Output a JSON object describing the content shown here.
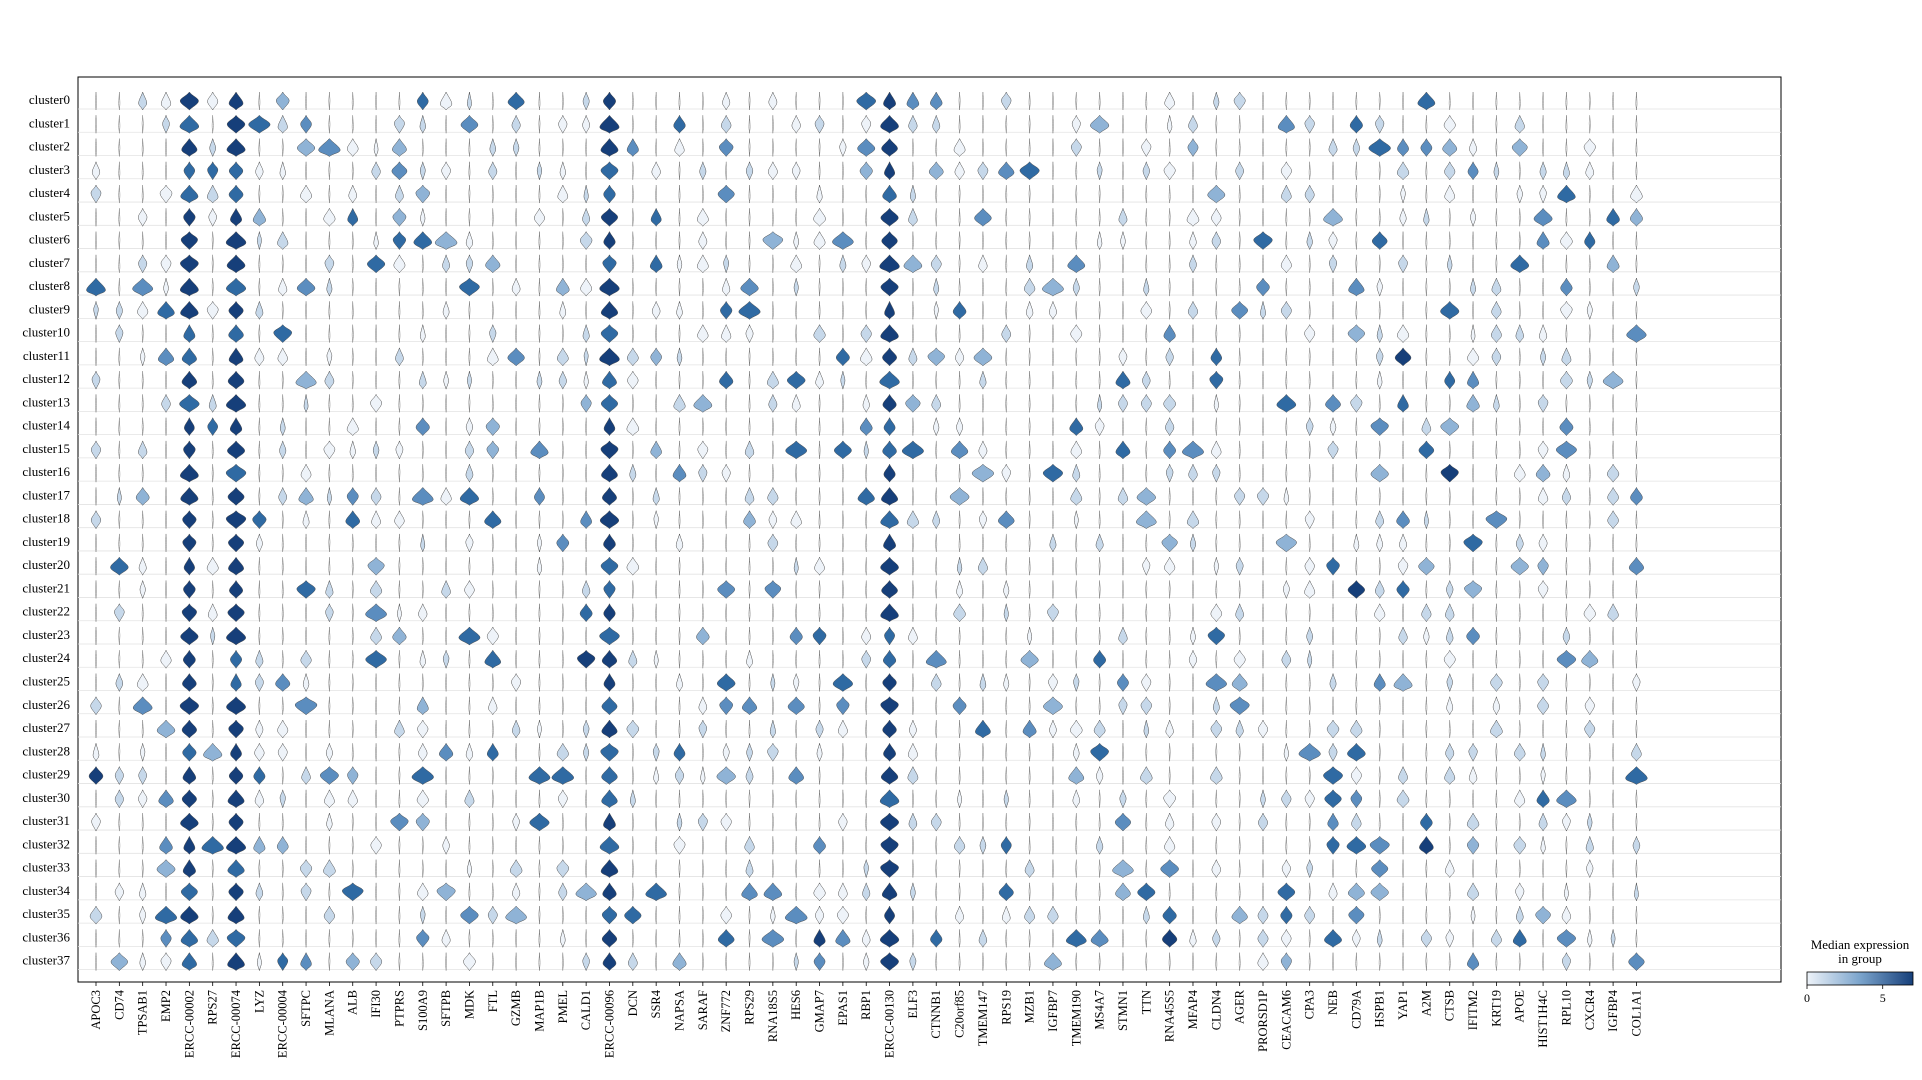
{
  "chart_data": {
    "type": "stacked_violin",
    "clusters": [
      "cluster0",
      "cluster1",
      "cluster2",
      "cluster3",
      "cluster4",
      "cluster5",
      "cluster6",
      "cluster7",
      "cluster8",
      "cluster9",
      "cluster10",
      "cluster11",
      "cluster12",
      "cluster13",
      "cluster14",
      "cluster15",
      "cluster16",
      "cluster17",
      "cluster18",
      "cluster19",
      "cluster20",
      "cluster21",
      "cluster22",
      "cluster23",
      "cluster24",
      "cluster25",
      "cluster26",
      "cluster27",
      "cluster28",
      "cluster29",
      "cluster30",
      "cluster31",
      "cluster32",
      "cluster33",
      "cluster34",
      "cluster35",
      "cluster36",
      "cluster37"
    ],
    "genes": [
      "APOC3",
      "CD74",
      "TPSAB1",
      "EMP2",
      "ERCC-00002",
      "RPS27",
      "ERCC-00074",
      "LYZ",
      "ERCC-00004",
      "SFTPC",
      "MLANA",
      "ALB",
      "IFI30",
      "PTPRS",
      "S100A9",
      "SFTPB",
      "MDK",
      "FTL",
      "GZMB",
      "MAP1B",
      "PMEL",
      "CALD1",
      "ERCC-00096",
      "DCN",
      "SSR4",
      "NAPSA",
      "SARAF",
      "ZNF772",
      "RPS29",
      "RNA18S5",
      "HES6",
      "GMAP7",
      "EPAS1",
      "RBP1",
      "ERCC-00130",
      "ELF3",
      "CTNNB1",
      "C20orf85",
      "TMEM147",
      "RPS19",
      "MZB1",
      "IGFBP7",
      "TMEM190",
      "MS4A7",
      "STMN1",
      "TTN",
      "RNA45S5",
      "MFAP4",
      "CLDN4",
      "AGER",
      "PRORSD1P",
      "CEACAM6",
      "CPA3",
      "NEB",
      "CD79A",
      "HSPB1",
      "YAP1",
      "A2M",
      "CTSB",
      "IFITM2",
      "KRT19",
      "APOE",
      "HIST1H4C",
      "RPL10",
      "CXCR4",
      "IGFBP4",
      "COL1A1"
    ],
    "colorbar": {
      "title": "Median expression\nin group",
      "range": [
        0,
        7
      ],
      "ticks": [
        0,
        5
      ],
      "colors": [
        "#e8eef6",
        "#1f4e8c"
      ]
    },
    "strong_genes": [
      "ERCC-00002",
      "ERCC-00074",
      "ERCC-00096",
      "ERCC-00130"
    ]
  }
}
